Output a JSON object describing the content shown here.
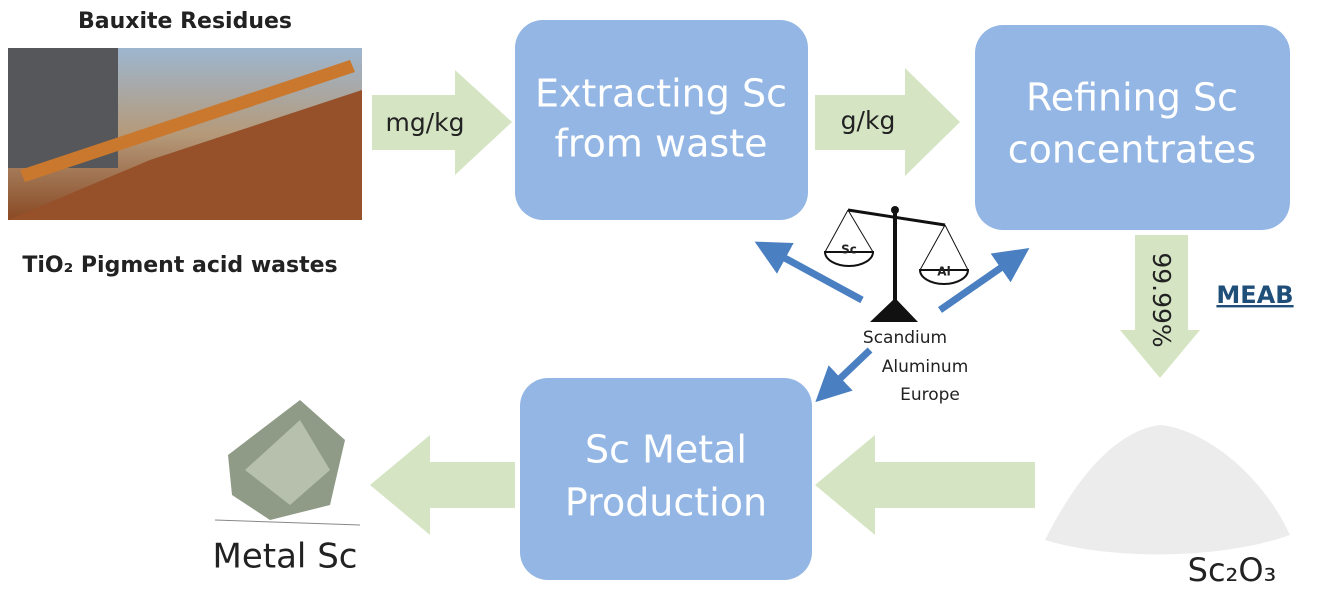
{
  "source": {
    "title": "Bauxite Residues",
    "subtitle": "TiO₂ Pigment acid wastes"
  },
  "arrows": {
    "input": "mg/kg",
    "middle": "g/kg",
    "purity": "99.99%"
  },
  "nodes": [
    {
      "lines": [
        "Extracting Sc",
        "from waste"
      ]
    },
    {
      "lines": [
        "Refining Sc",
        "concentrates"
      ]
    },
    {
      "lines": [
        "Sc Metal",
        "Production"
      ]
    }
  ],
  "link": "MEAB",
  "balance": {
    "left": "Sc",
    "right": "Al",
    "caption": [
      "Scandium",
      "Aluminum",
      "Europe"
    ]
  },
  "products": {
    "oxide": "Sc₂O₃",
    "metal": "Metal Sc"
  }
}
